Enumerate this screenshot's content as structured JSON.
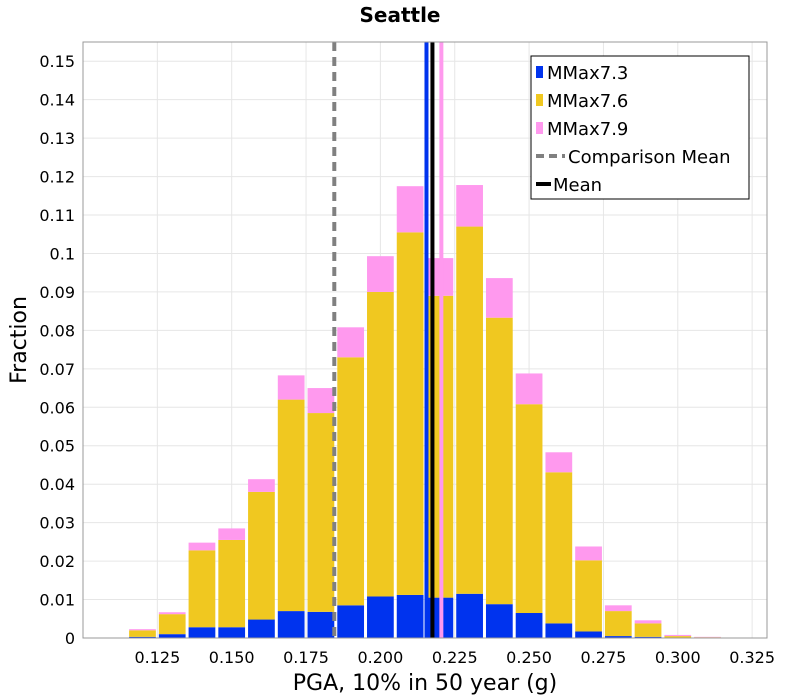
{
  "chart_data": {
    "type": "bar",
    "stacked": true,
    "title": "Seattle",
    "xlabel": "PGA, 10% in 50 year (g)",
    "ylabel": "Fraction",
    "xlim": [
      0.1,
      0.33
    ],
    "ylim": [
      0,
      0.155
    ],
    "grid": true,
    "legend_position": "top-right",
    "bin_width": 0.01,
    "x_ticks": [
      0.125,
      0.15,
      0.175,
      0.2,
      0.225,
      0.25,
      0.275,
      0.3,
      0.325
    ],
    "x_tick_labels": [
      "0.125",
      "0.150",
      "0.175",
      "0.200",
      "0.225",
      "0.250",
      "0.275",
      "0.300",
      "0.325"
    ],
    "y_ticks": [
      0,
      0.01,
      0.02,
      0.03,
      0.04,
      0.05,
      0.06,
      0.07,
      0.08,
      0.09,
      0.1,
      0.11,
      0.12,
      0.13,
      0.14,
      0.15
    ],
    "y_tick_labels": [
      "0",
      "0.01",
      "0.02",
      "0.03",
      "0.04",
      "0.05",
      "0.06",
      "0.07",
      "0.08",
      "0.09",
      "0.1",
      "0.11",
      "0.12",
      "0.13",
      "0.14",
      "0.15"
    ],
    "x": [
      0.12,
      0.13,
      0.14,
      0.15,
      0.16,
      0.17,
      0.18,
      0.19,
      0.2,
      0.21,
      0.22,
      0.23,
      0.24,
      0.25,
      0.26,
      0.27,
      0.28,
      0.29,
      0.3,
      0.31
    ],
    "series": [
      {
        "name": "MMax7.3",
        "color": "#0033ee",
        "values": [
          0.0003,
          0.001,
          0.0028,
          0.0028,
          0.0048,
          0.007,
          0.0068,
          0.0085,
          0.0108,
          0.0112,
          0.0105,
          0.0115,
          0.0088,
          0.0065,
          0.0038,
          0.0017,
          0.0005,
          0.0003,
          0.0,
          0.0
        ]
      },
      {
        "name": "MMax7.6",
        "color": "#f0c820",
        "values": [
          0.0017,
          0.0052,
          0.02,
          0.0227,
          0.0332,
          0.055,
          0.0517,
          0.0645,
          0.0792,
          0.0943,
          0.0785,
          0.0955,
          0.0745,
          0.0543,
          0.0393,
          0.0185,
          0.0065,
          0.0035,
          0.0005,
          0.0002
        ]
      },
      {
        "name": "MMax7.9",
        "color": "#ff99ee",
        "values": [
          0.0003,
          0.0005,
          0.002,
          0.003,
          0.0033,
          0.0063,
          0.0065,
          0.0078,
          0.0093,
          0.012,
          0.0098,
          0.0108,
          0.0103,
          0.008,
          0.0052,
          0.0036,
          0.0015,
          0.0008,
          0.0003,
          0.0001
        ]
      }
    ],
    "lines": [
      {
        "name": "Comparison Mean",
        "x": 0.1845,
        "color": "#808080",
        "style": "dashed"
      },
      {
        "name": "Mean",
        "x": 0.2175,
        "color": "#000000",
        "style": "solid"
      }
    ],
    "extra_lines": [
      {
        "x": 0.2155,
        "color": "#0033ee"
      },
      {
        "x": 0.2205,
        "color": "#ff99ee"
      }
    ]
  }
}
